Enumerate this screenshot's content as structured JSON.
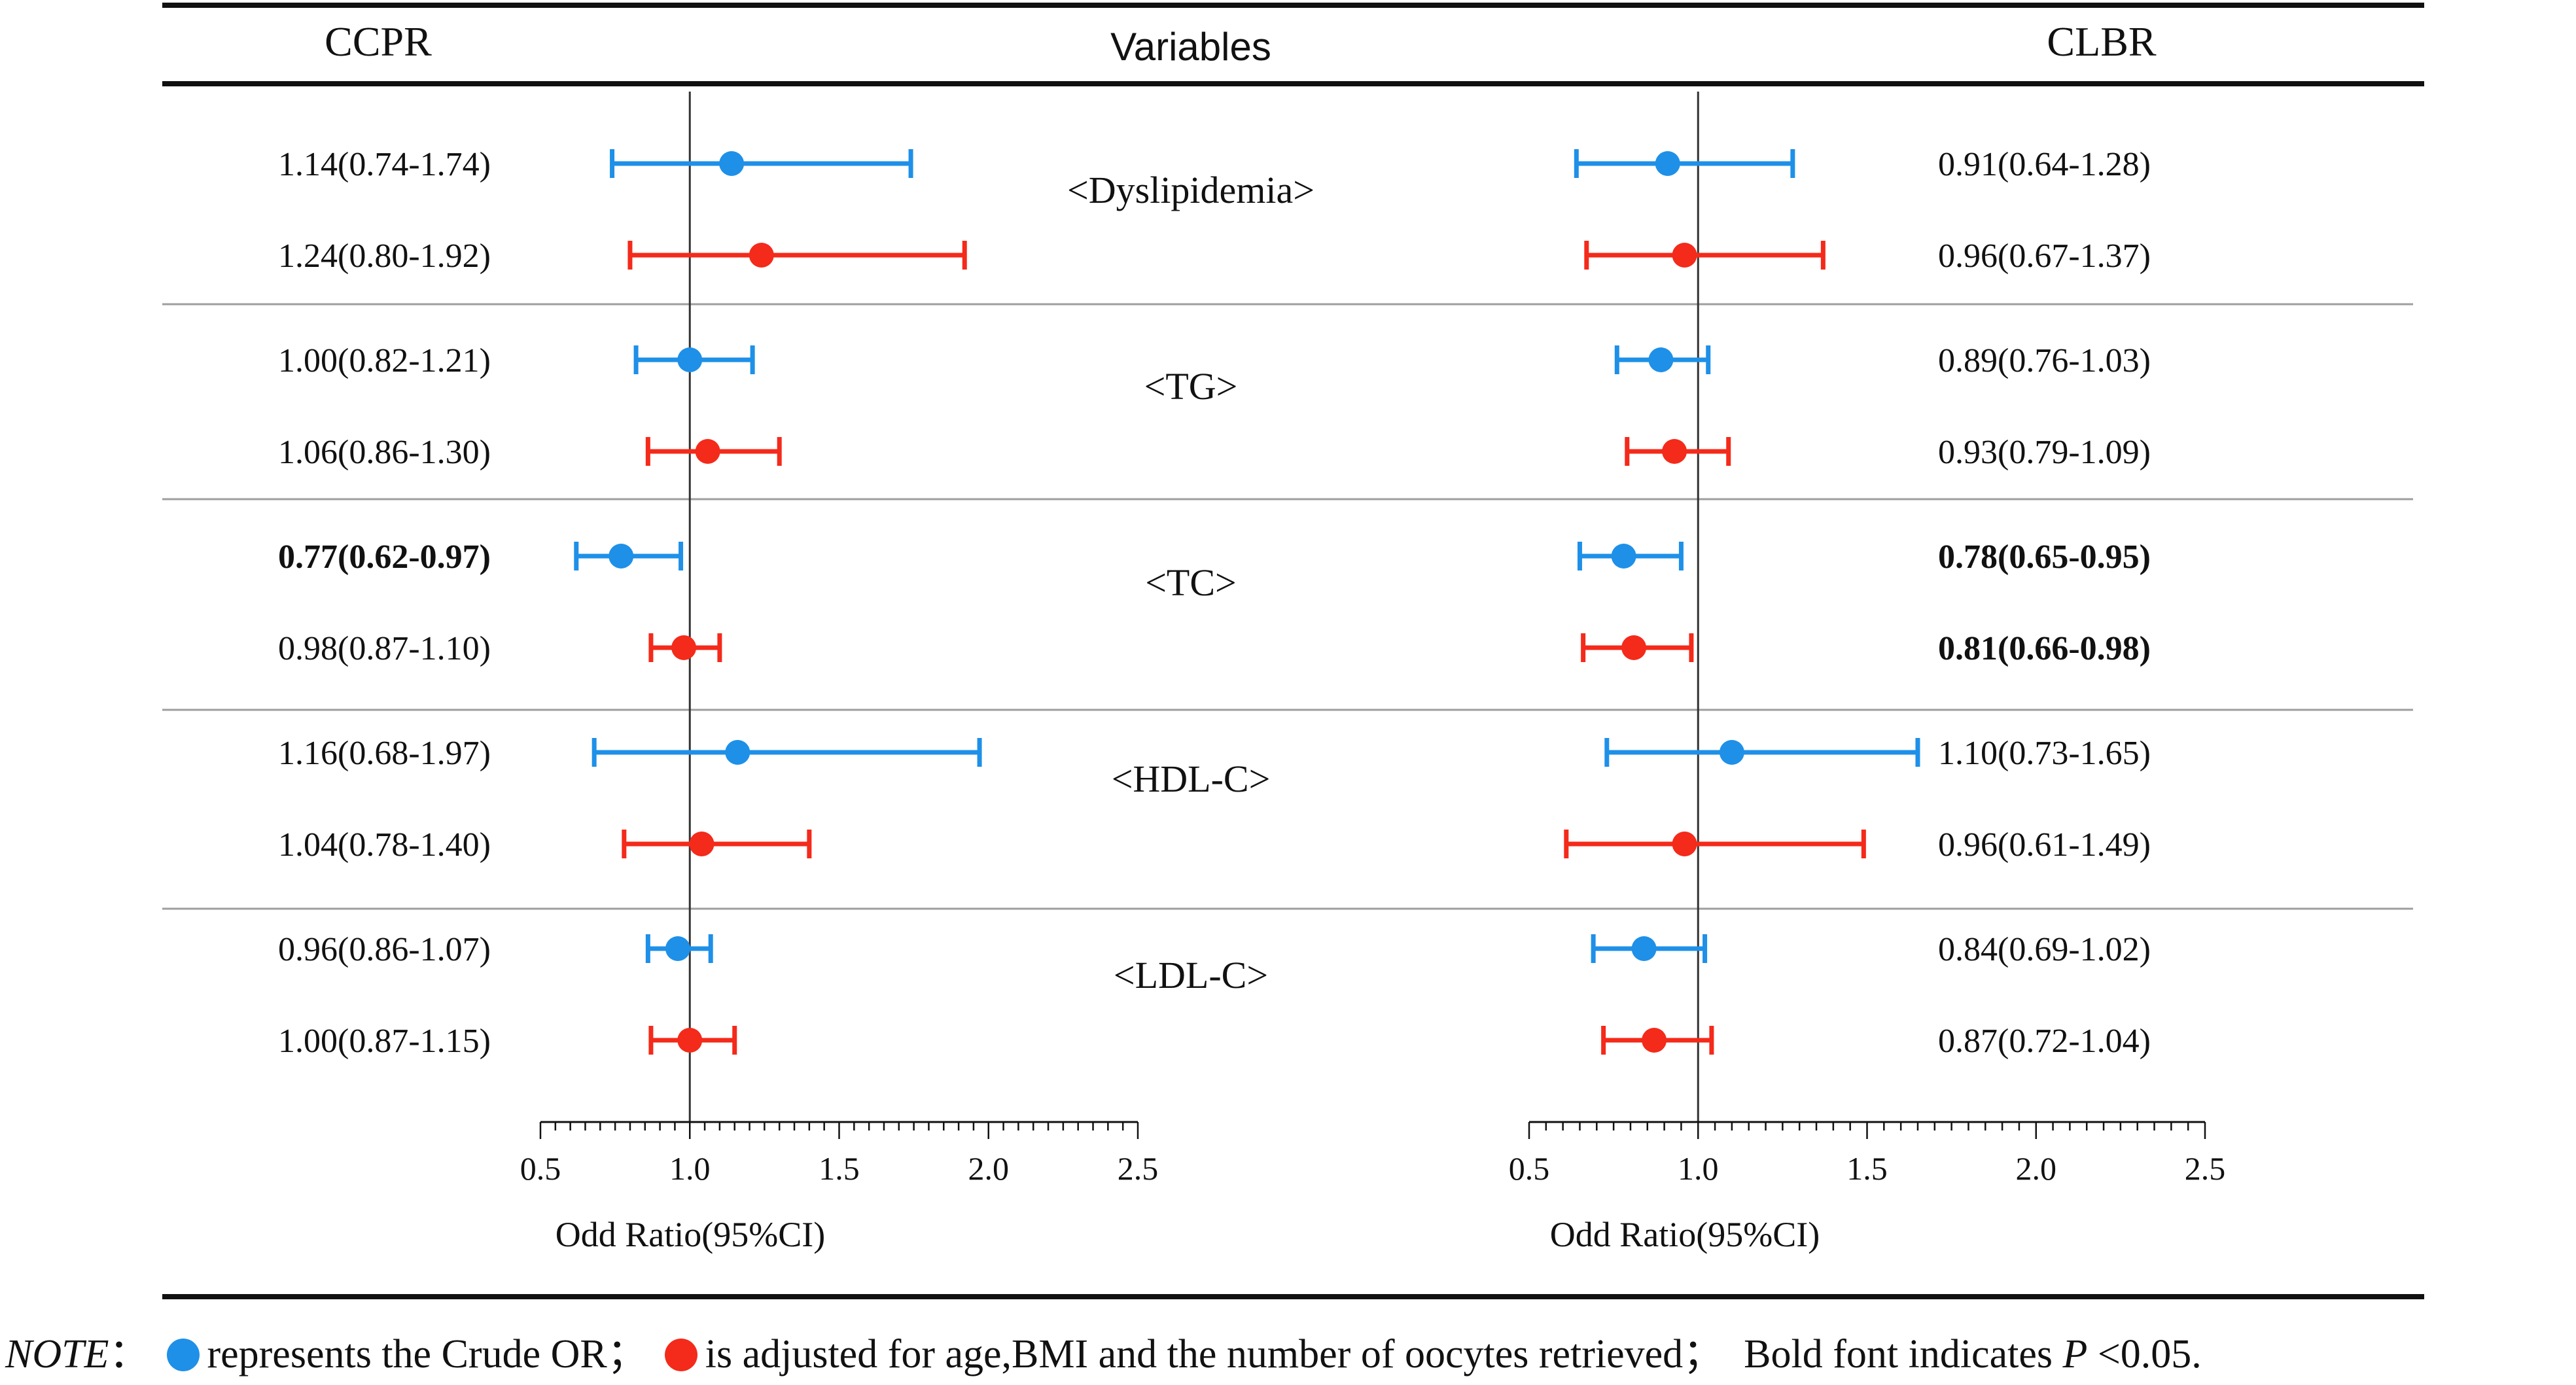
{
  "colors": {
    "crude": "#1E90E8",
    "adjusted": "#F42A1A",
    "axis": "#111111",
    "divider": "#9E9E9E"
  },
  "chart_data": {
    "type": "forest",
    "headers": {
      "left": "CCPR",
      "center": "Variables",
      "right": "CLBR"
    },
    "x_axis": {
      "label": "Odd Ratio(95%CI)",
      "range": [
        0.5,
        2.5
      ],
      "ticks": [
        0.5,
        1.0,
        1.5,
        2.0,
        2.5
      ],
      "tick_labels": [
        "0.5",
        "1.0",
        "1.5",
        "2.0",
        "2.5"
      ],
      "reference_line": 1.0
    },
    "groups": [
      {
        "name": "<Dyslipidemia>",
        "ccpr": [
          {
            "model": "crude",
            "or": 1.14,
            "lo": 0.74,
            "hi": 1.74,
            "label": "1.14(0.74-1.74)",
            "bold": false
          },
          {
            "model": "adjusted",
            "or": 1.24,
            "lo": 0.8,
            "hi": 1.92,
            "label": "1.24(0.80-1.92)",
            "bold": false
          }
        ],
        "clbr": [
          {
            "model": "crude",
            "or": 0.91,
            "lo": 0.64,
            "hi": 1.28,
            "label": "0.91(0.64-1.28)",
            "bold": false
          },
          {
            "model": "adjusted",
            "or": 0.96,
            "lo": 0.67,
            "hi": 1.37,
            "label": "0.96(0.67-1.37)",
            "bold": false
          }
        ]
      },
      {
        "name": "<TG>",
        "ccpr": [
          {
            "model": "crude",
            "or": 1.0,
            "lo": 0.82,
            "hi": 1.21,
            "label": "1.00(0.82-1.21)",
            "bold": false
          },
          {
            "model": "adjusted",
            "or": 1.06,
            "lo": 0.86,
            "hi": 1.3,
            "label": "1.06(0.86-1.30)",
            "bold": false
          }
        ],
        "clbr": [
          {
            "model": "crude",
            "or": 0.89,
            "lo": 0.76,
            "hi": 1.03,
            "label": "0.89(0.76-1.03)",
            "bold": false
          },
          {
            "model": "adjusted",
            "or": 0.93,
            "lo": 0.79,
            "hi": 1.09,
            "label": "0.93(0.79-1.09)",
            "bold": false
          }
        ]
      },
      {
        "name": "<TC>",
        "ccpr": [
          {
            "model": "crude",
            "or": 0.77,
            "lo": 0.62,
            "hi": 0.97,
            "label": "0.77(0.62-0.97)",
            "bold": true
          },
          {
            "model": "adjusted",
            "or": 0.98,
            "lo": 0.87,
            "hi": 1.1,
            "label": "0.98(0.87-1.10)",
            "bold": false
          }
        ],
        "clbr": [
          {
            "model": "crude",
            "or": 0.78,
            "lo": 0.65,
            "hi": 0.95,
            "label": "0.78(0.65-0.95)",
            "bold": true
          },
          {
            "model": "adjusted",
            "or": 0.81,
            "lo": 0.66,
            "hi": 0.98,
            "label": "0.81(0.66-0.98)",
            "bold": true
          }
        ]
      },
      {
        "name": "<HDL-C>",
        "ccpr": [
          {
            "model": "crude",
            "or": 1.16,
            "lo": 0.68,
            "hi": 1.97,
            "label": "1.16(0.68-1.97)",
            "bold": false
          },
          {
            "model": "adjusted",
            "or": 1.04,
            "lo": 0.78,
            "hi": 1.4,
            "label": "1.04(0.78-1.40)",
            "bold": false
          }
        ],
        "clbr": [
          {
            "model": "crude",
            "or": 1.1,
            "lo": 0.73,
            "hi": 1.65,
            "label": "1.10(0.73-1.65)",
            "bold": false
          },
          {
            "model": "adjusted",
            "or": 0.96,
            "lo": 0.61,
            "hi": 1.49,
            "label": "0.96(0.61-1.49)",
            "bold": false
          }
        ]
      },
      {
        "name": "<LDL-C>",
        "ccpr": [
          {
            "model": "crude",
            "or": 0.96,
            "lo": 0.86,
            "hi": 1.07,
            "label": "0.96(0.86-1.07)",
            "bold": false
          },
          {
            "model": "adjusted",
            "or": 1.0,
            "lo": 0.87,
            "hi": 1.15,
            "label": "1.00(0.87-1.15)",
            "bold": false
          }
        ],
        "clbr": [
          {
            "model": "crude",
            "or": 0.84,
            "lo": 0.69,
            "hi": 1.02,
            "label": "0.84(0.69-1.02)",
            "bold": false
          },
          {
            "model": "adjusted",
            "or": 0.87,
            "lo": 0.72,
            "hi": 1.04,
            "label": "0.87(0.72-1.04)",
            "bold": false
          }
        ]
      }
    ]
  },
  "note": {
    "prefix": "NOTE",
    "colon": "：",
    "crude_text": "represents the Crude OR；",
    "adjusted_text": "is adjusted for age,BMI and the number of oocytes retrieved；",
    "bold_text": "Bold font indicates",
    "p_symbol": "P",
    "p_condition": "<0.05."
  }
}
